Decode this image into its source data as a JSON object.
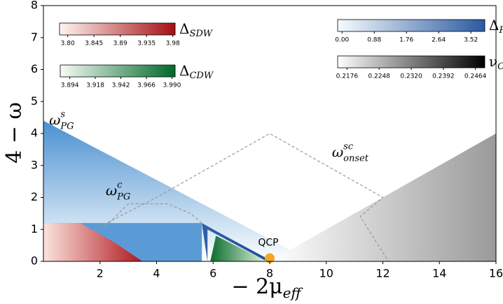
{
  "chart_data": {
    "type": "phase-diagram",
    "x_label": {
      "base": "− 2μ",
      "sub": "eff"
    },
    "y_label": "4 − ω",
    "xlim": [
      0,
      16
    ],
    "ylim": [
      0,
      8
    ],
    "xticks": [
      2,
      4,
      6,
      8,
      10,
      12,
      14,
      16
    ],
    "yticks": [
      0,
      1,
      2,
      3,
      4,
      5,
      6,
      7,
      8
    ],
    "regions": [
      {
        "colors": [
          "#ffffff",
          "#4a90d0"
        ],
        "gradient": "vertical",
        "x": [
          0,
          0,
          9.5,
          0
        ],
        "y": [
          0,
          4.4,
          0,
          0
        ]
      },
      {
        "colors": [
          "#5b9bd5",
          "#5b9bd5"
        ],
        "gradient": "vertical",
        "x": [
          0,
          5.6,
          5.6,
          0
        ],
        "y": [
          0,
          0,
          1.2,
          1.2
        ]
      },
      {
        "colors": [
          "#fbe3dc",
          "#b0171f"
        ],
        "gradient": "horizontal",
        "x": [
          0,
          1.3,
          2.5,
          3.5,
          0
        ],
        "y": [
          1.2,
          1.2,
          0.6,
          0,
          0
        ]
      },
      {
        "colors": [
          "#2f5fa8",
          "#1f4f98"
        ],
        "gradient": "horizontal",
        "x": [
          5.6,
          6.1,
          8.1,
          7.9,
          5.8,
          5.8
        ],
        "y": [
          1.2,
          0.95,
          0,
          0,
          1.0,
          0
        ]
      },
      {
        "colors": [
          "#0b6d2c",
          "#e6f5e2"
        ],
        "gradient": "horizontal",
        "x": [
          5.9,
          6.1,
          7.9,
          5.9
        ],
        "y": [
          0,
          0.8,
          0,
          0
        ]
      },
      {
        "colors": [
          "#ffffff",
          "#9a9a9a"
        ],
        "gradient": "horizontal",
        "x": [
          8,
          16,
          16
        ],
        "y": [
          0,
          4,
          0
        ]
      }
    ],
    "series": [
      {
        "x": [
          1.8,
          4,
          8,
          12,
          11.2,
          12.2
        ],
        "y": [
          1.0,
          2.0,
          4.0,
          2.0,
          1.4,
          0
        ],
        "color": "#999999"
      },
      {
        "x": [
          2.2,
          3.0,
          4.4,
          5.2,
          5.6
        ],
        "y": [
          1.1,
          1.8,
          1.8,
          1.5,
          1.2
        ],
        "color": "#999999"
      }
    ],
    "points": [
      {
        "x": 8,
        "y": 0.1,
        "label": "QCP",
        "color": "#f5a623"
      }
    ],
    "annotations": [
      {
        "base": "ω",
        "sup": "s",
        "sub": "PG",
        "x": 0.2,
        "y": 4.4
      },
      {
        "base": "ω",
        "sup": "c",
        "sub": "PG",
        "x": 2.2,
        "y": 2.2
      },
      {
        "base": "ω",
        "sup": "sc",
        "sub": "onset",
        "x": 10.2,
        "y": 3.4
      }
    ],
    "colorbars": [
      {
        "label": {
          "base": "Δ",
          "sub": "SDW"
        },
        "colors": [
          "#fff5f0",
          "#a50f15"
        ],
        "lim": [
          3.786,
          3.984
        ],
        "ticks": [
          {
            "value": 3.8,
            "label": "3.80"
          },
          3.845,
          3.89,
          3.935,
          3.98
        ]
      },
      {
        "label": {
          "base": "Δ",
          "sub": "CDW"
        },
        "colors": [
          "#f7fcf5",
          "#00682a"
        ],
        "lim": [
          3.885,
          3.993
        ],
        "ticks": [
          3.894,
          3.918,
          3.942,
          3.966,
          {
            "value": 3.99,
            "label": "3.990"
          }
        ]
      },
      {
        "label": {
          "base": "Δ",
          "sub": "PG"
        },
        "colors": [
          "#f7fbff",
          "#2a5aa0"
        ],
        "lim": [
          -0.12,
          3.9
        ],
        "ticks": [
          {
            "value": 0,
            "label": "0.00"
          },
          0.88,
          1.76,
          2.64,
          3.52
        ]
      },
      {
        "label": {
          "base": "ν",
          "sub": "CFL"
        },
        "colors": [
          "#ffffff",
          "#000000"
        ],
        "lim": [
          0.2155,
          0.2485
        ],
        "ticks": [
          0.2176,
          0.2248,
          {
            "value": 0.232,
            "label": "0.2320"
          },
          0.2392,
          0.2464
        ]
      }
    ]
  }
}
